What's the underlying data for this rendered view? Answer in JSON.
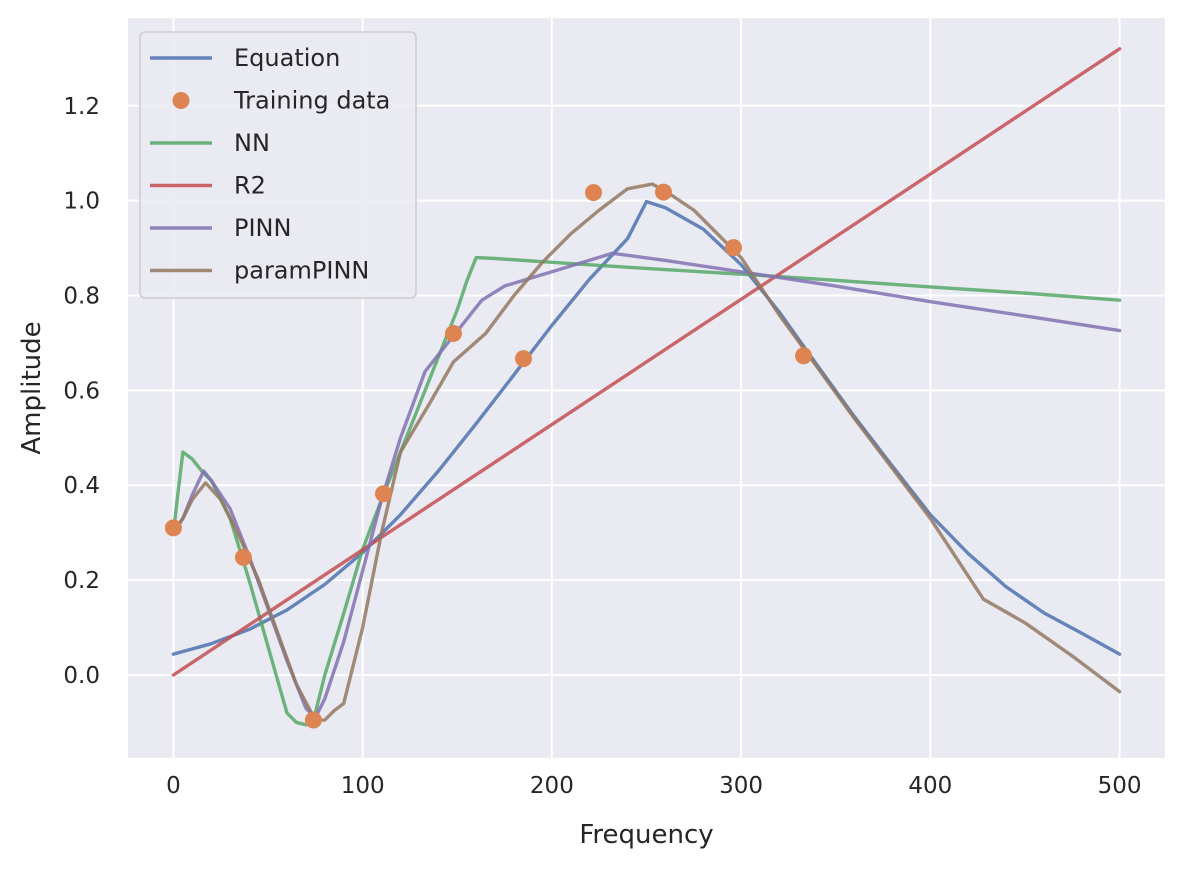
{
  "chart_data": {
    "type": "line",
    "xlabel": "Frequency",
    "ylabel": "Amplitude",
    "xlim": [
      -24,
      524
    ],
    "ylim": [
      -0.175,
      1.385
    ],
    "xticks": [
      0,
      100,
      200,
      300,
      400,
      500
    ],
    "xtick_labels": [
      "0",
      "100",
      "200",
      "300",
      "400",
      "500"
    ],
    "yticks": [
      0.0,
      0.2,
      0.4,
      0.6,
      0.8,
      1.0,
      1.2
    ],
    "ytick_labels": [
      "0.0",
      "0.2",
      "0.4",
      "0.6",
      "0.8",
      "1.0",
      "1.2"
    ],
    "grid": true,
    "legend_position": "top-left",
    "colors": {
      "background": "#eaeaf2",
      "grid": "#ffffff",
      "equation": "#4c72b0",
      "training": "#dd8452",
      "nn": "#55a868",
      "r2": "#c44e52",
      "pinn": "#8172b3",
      "parampinn": "#937860"
    },
    "series": [
      {
        "name": "Equation",
        "style": "line",
        "color": "#4c72b0",
        "x": [
          0,
          20,
          40,
          60,
          80,
          100,
          120,
          140,
          160,
          180,
          200,
          220,
          240,
          250,
          260,
          280,
          300,
          320,
          340,
          360,
          380,
          400,
          420,
          440,
          460,
          480,
          500
        ],
        "y": [
          0.044,
          0.066,
          0.096,
          0.137,
          0.191,
          0.258,
          0.338,
          0.43,
          0.53,
          0.633,
          0.737,
          0.835,
          0.92,
          0.998,
          0.985,
          0.94,
          0.865,
          0.766,
          0.654,
          0.544,
          0.44,
          0.338,
          0.256,
          0.186,
          0.131,
          0.088,
          0.044
        ]
      },
      {
        "name": "Training data",
        "style": "markers",
        "color": "#dd8452",
        "x": [
          0,
          37,
          74,
          111,
          148,
          185,
          222,
          259,
          296,
          333
        ],
        "y": [
          0.31,
          0.248,
          -0.095,
          0.382,
          0.72,
          0.667,
          1.017,
          1.018,
          0.901,
          0.673
        ]
      },
      {
        "name": "NN",
        "style": "line",
        "color": "#55a868",
        "x": [
          0,
          2,
          5,
          10,
          15,
          20,
          30,
          40,
          50,
          60,
          65,
          70,
          75,
          80,
          90,
          100,
          110,
          120,
          130,
          140,
          150,
          155,
          160,
          170,
          200,
          250,
          300,
          350,
          400,
          450,
          500
        ],
        "y": [
          0.3,
          0.37,
          0.47,
          0.455,
          0.43,
          0.41,
          0.33,
          0.2,
          0.06,
          -0.08,
          -0.1,
          -0.105,
          -0.08,
          0.0,
          0.13,
          0.265,
          0.37,
          0.47,
          0.57,
          0.67,
          0.77,
          0.83,
          0.88,
          0.878,
          0.87,
          0.857,
          0.845,
          0.832,
          0.818,
          0.805,
          0.79
        ]
      },
      {
        "name": "R2",
        "style": "line",
        "color": "#c44e52",
        "x": [
          0,
          500
        ],
        "y": [
          0.0,
          1.32
        ]
      },
      {
        "name": "PINN",
        "style": "line",
        "color": "#8172b3",
        "x": [
          0,
          5,
          10,
          16,
          20,
          30,
          40,
          50,
          60,
          70,
          75,
          80,
          90,
          100,
          110,
          120,
          133,
          145,
          155,
          163,
          175,
          200,
          232,
          260,
          300,
          350,
          400,
          450,
          500
        ],
        "y": [
          0.3,
          0.33,
          0.38,
          0.43,
          0.41,
          0.35,
          0.25,
          0.14,
          0.03,
          -0.07,
          -0.09,
          -0.05,
          0.07,
          0.22,
          0.37,
          0.5,
          0.64,
          0.7,
          0.75,
          0.79,
          0.82,
          0.85,
          0.889,
          0.874,
          0.85,
          0.82,
          0.787,
          0.757,
          0.726
        ]
      },
      {
        "name": "paramPINN",
        "style": "line",
        "color": "#937860",
        "x": [
          0,
          5,
          10,
          17,
          25,
          35,
          45,
          55,
          65,
          75,
          80,
          85,
          90,
          100,
          110,
          120,
          135,
          148,
          165,
          180,
          195,
          210,
          225,
          240,
          253,
          260,
          275,
          300,
          320,
          340,
          360,
          380,
          400,
          428,
          450,
          475,
          500
        ],
        "y": [
          0.3,
          0.33,
          0.37,
          0.405,
          0.37,
          0.29,
          0.2,
          0.09,
          -0.02,
          -0.095,
          -0.095,
          -0.075,
          -0.06,
          0.1,
          0.3,
          0.47,
          0.57,
          0.66,
          0.72,
          0.8,
          0.87,
          0.93,
          0.98,
          1.025,
          1.035,
          1.02,
          0.98,
          0.88,
          0.76,
          0.65,
          0.54,
          0.435,
          0.33,
          0.16,
          0.11,
          0.04,
          -0.035
        ]
      }
    ]
  }
}
